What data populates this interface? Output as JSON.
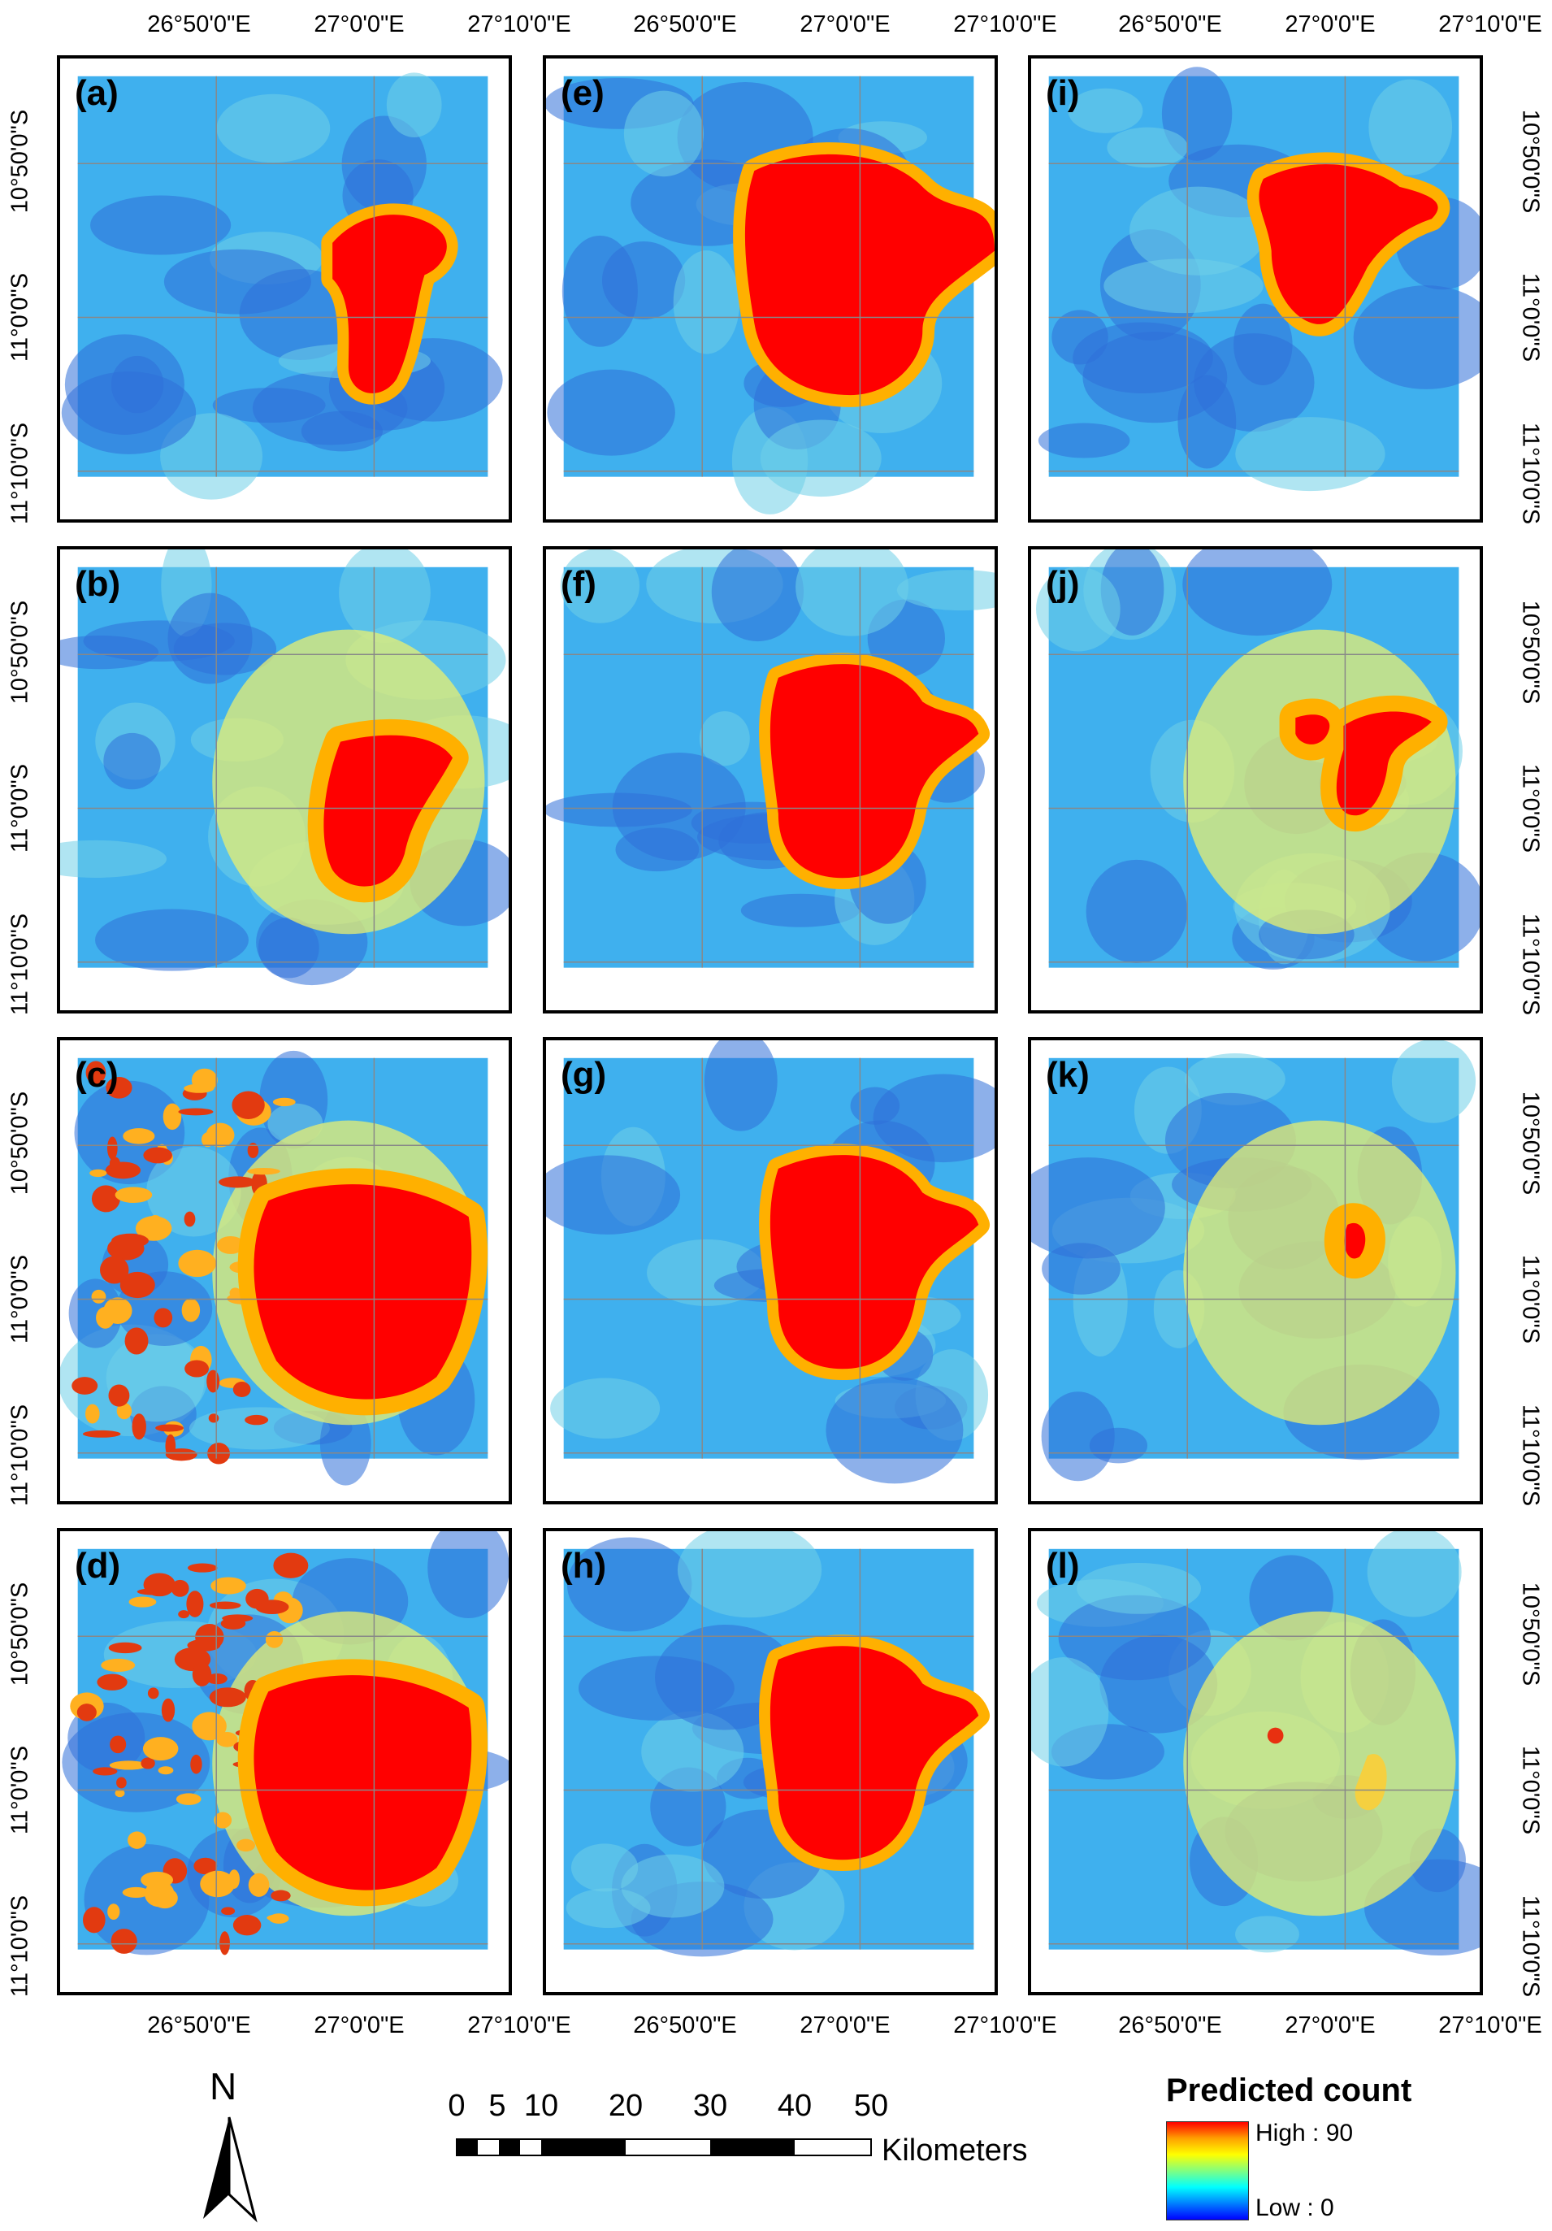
{
  "figure": {
    "panels": [
      {
        "id": "a",
        "label": "(a)",
        "variant": "small"
      },
      {
        "id": "b",
        "label": "(b)",
        "variant": "medium"
      },
      {
        "id": "c",
        "label": "(c)",
        "variant": "speckle"
      },
      {
        "id": "d",
        "label": "(d)",
        "variant": "speckle"
      },
      {
        "id": "e",
        "label": "(e)",
        "variant": "large-wide"
      },
      {
        "id": "f",
        "label": "(f)",
        "variant": "large"
      },
      {
        "id": "g",
        "label": "(g)",
        "variant": "large"
      },
      {
        "id": "h",
        "label": "(h)",
        "variant": "large"
      },
      {
        "id": "i",
        "label": "(i)",
        "variant": "heart"
      },
      {
        "id": "j",
        "label": "(j)",
        "variant": "small-yellow"
      },
      {
        "id": "k",
        "label": "(k)",
        "variant": "faint"
      },
      {
        "id": "l",
        "label": "(l)",
        "variant": "faintest"
      }
    ],
    "lon_labels": [
      "26°50'0\"E",
      "27°0'0\"E",
      "27°10'0\"E"
    ],
    "lat_labels_left": [
      "11°10'0\"S",
      "11°0'0\"S",
      "10°50'0\"S"
    ],
    "lat_labels_right": [
      "10°50'0\"S",
      "11°0'0\"S",
      "11°10'0\"S"
    ]
  },
  "north_arrow": {
    "label": "N"
  },
  "scale_bar": {
    "ticks": [
      "0",
      "5",
      "10",
      "20",
      "30",
      "40",
      "50"
    ],
    "unit": "Kilometers"
  },
  "legend": {
    "title": "Predicted count",
    "high": "High : 90",
    "low": "Low : 0",
    "colors": [
      "#ff0000",
      "#ffa000",
      "#ffff00",
      "#80ff80",
      "#00ffff",
      "#0080ff",
      "#0000ff"
    ]
  }
}
